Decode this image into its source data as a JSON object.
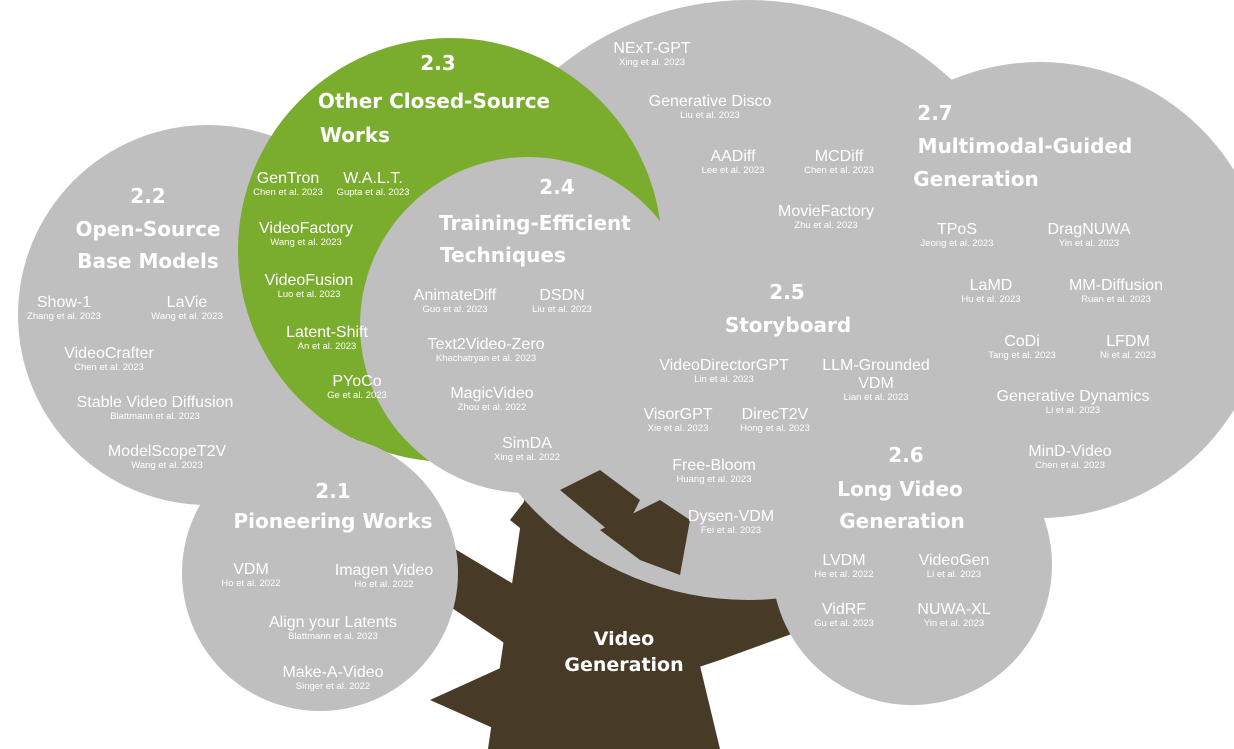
{
  "colors": {
    "trunk": "#473b28",
    "bubble": "#bfbfbf",
    "accent": "#7aac2e",
    "text": "#ffffff"
  },
  "root": {
    "line1": "Video",
    "line2": "Generation"
  },
  "sections": {
    "s21": {
      "num": "2.1",
      "title1": "Pioneering Works",
      "works": [
        {
          "name": "VDM",
          "cite": "Ho et al. 2022"
        },
        {
          "name": "Imagen Video",
          "cite": "Ho et al. 2022"
        },
        {
          "name": "Align your Latents",
          "cite": "Blattmann et al. 2023"
        },
        {
          "name": "Make-A-Video",
          "cite": "Singer et al. 2022"
        }
      ]
    },
    "s22": {
      "num": "2.2",
      "title1": "Open-Source",
      "title2": "Base Models",
      "works": [
        {
          "name": "Show-1",
          "cite": "Zhang et al. 2023"
        },
        {
          "name": "LaVie",
          "cite": "Wang et al. 2023"
        },
        {
          "name": "VideoCrafter",
          "cite": "Chen et al. 2023"
        },
        {
          "name": "Stable Video Diffusion",
          "cite": "Blattmann et al. 2023"
        },
        {
          "name": "ModelScopeT2V",
          "cite": "Wang et al. 2023"
        }
      ]
    },
    "s23": {
      "num": "2.3",
      "title1": "Other Closed-Source",
      "title2": "Works",
      "works": [
        {
          "name": "GenTron",
          "cite": "Chen et al. 2023"
        },
        {
          "name": "W.A.L.T.",
          "cite": "Gupta et al. 2023"
        },
        {
          "name": "VideoFactory",
          "cite": "Wang et al. 2023"
        },
        {
          "name": "VideoFusion",
          "cite": "Luo et al. 2023"
        },
        {
          "name": "Latent-Shift",
          "cite": "An et al. 2023"
        },
        {
          "name": "PYoCo",
          "cite": "Ge et al. 2023"
        }
      ]
    },
    "s24": {
      "num": "2.4",
      "title1": "Training-Efficient",
      "title2": "Techniques",
      "works": [
        {
          "name": "AnimateDiff",
          "cite": "Guo et al. 2023"
        },
        {
          "name": "DSDN",
          "cite": "Liu et al. 2023"
        },
        {
          "name": "Text2Video-Zero",
          "cite": "Khachatryan et al. 2023"
        },
        {
          "name": "MagicVideo",
          "cite": "Zhou et al. 2022"
        },
        {
          "name": "SimDA",
          "cite": "Xing et al. 2022"
        }
      ]
    },
    "s25": {
      "num": "2.5",
      "title1": "Storyboard",
      "works": [
        {
          "name": "NExT-GPT",
          "cite": "Xing et al. 2023"
        },
        {
          "name": "Generative Disco",
          "cite": "Liu et al. 2023"
        },
        {
          "name": "AADiff",
          "cite": "Lee et al. 2023"
        },
        {
          "name": "MCDiff",
          "cite": "Chen et al. 2023"
        },
        {
          "name": "MovieFactory",
          "cite": "Zhu et al. 2023"
        },
        {
          "name": "VideoDirectorGPT",
          "cite": "Lin et al. 2023"
        },
        {
          "name": "LLM-Grounded",
          "name2": "VDM",
          "cite": "Lian et al. 2023"
        },
        {
          "name": "VisorGPT",
          "cite": "Xie et al. 2023"
        },
        {
          "name": "DirecT2V",
          "cite": "Hong et al. 2023"
        },
        {
          "name": "Free-Bloom",
          "cite": "Huang et al. 2023"
        },
        {
          "name": "Dysen-VDM",
          "cite": "Fei et al. 2023"
        }
      ]
    },
    "s26": {
      "num": "2.6",
      "title1": "Long Video",
      "title2": "Generation",
      "works": [
        {
          "name": "LVDM",
          "cite": "He et al. 2022"
        },
        {
          "name": "VideoGen",
          "cite": "Li et al. 2023"
        },
        {
          "name": "VidRF",
          "cite": "Gu et al. 2023"
        },
        {
          "name": "NUWA-XL",
          "cite": "Yin et al. 2023"
        }
      ]
    },
    "s27": {
      "num": "2.7",
      "title1": "Multimodal-Guided",
      "title2": "Generation",
      "works": [
        {
          "name": "TPoS",
          "cite": "Jeong et al. 2023"
        },
        {
          "name": "DragNUWA",
          "cite": "Yin et al. 2023"
        },
        {
          "name": "LaMD",
          "cite": "Hu et al. 2023"
        },
        {
          "name": "MM-Diffusion",
          "cite": "Ruan et al. 2023"
        },
        {
          "name": "CoDi",
          "cite": "Tang et al. 2023"
        },
        {
          "name": "LFDM",
          "cite": "Ni et al. 2023"
        },
        {
          "name": "Generative Dynamics",
          "cite": "Li et al. 2023"
        },
        {
          "name": "MinD-Video",
          "cite": "Chen et al. 2023"
        }
      ]
    }
  }
}
